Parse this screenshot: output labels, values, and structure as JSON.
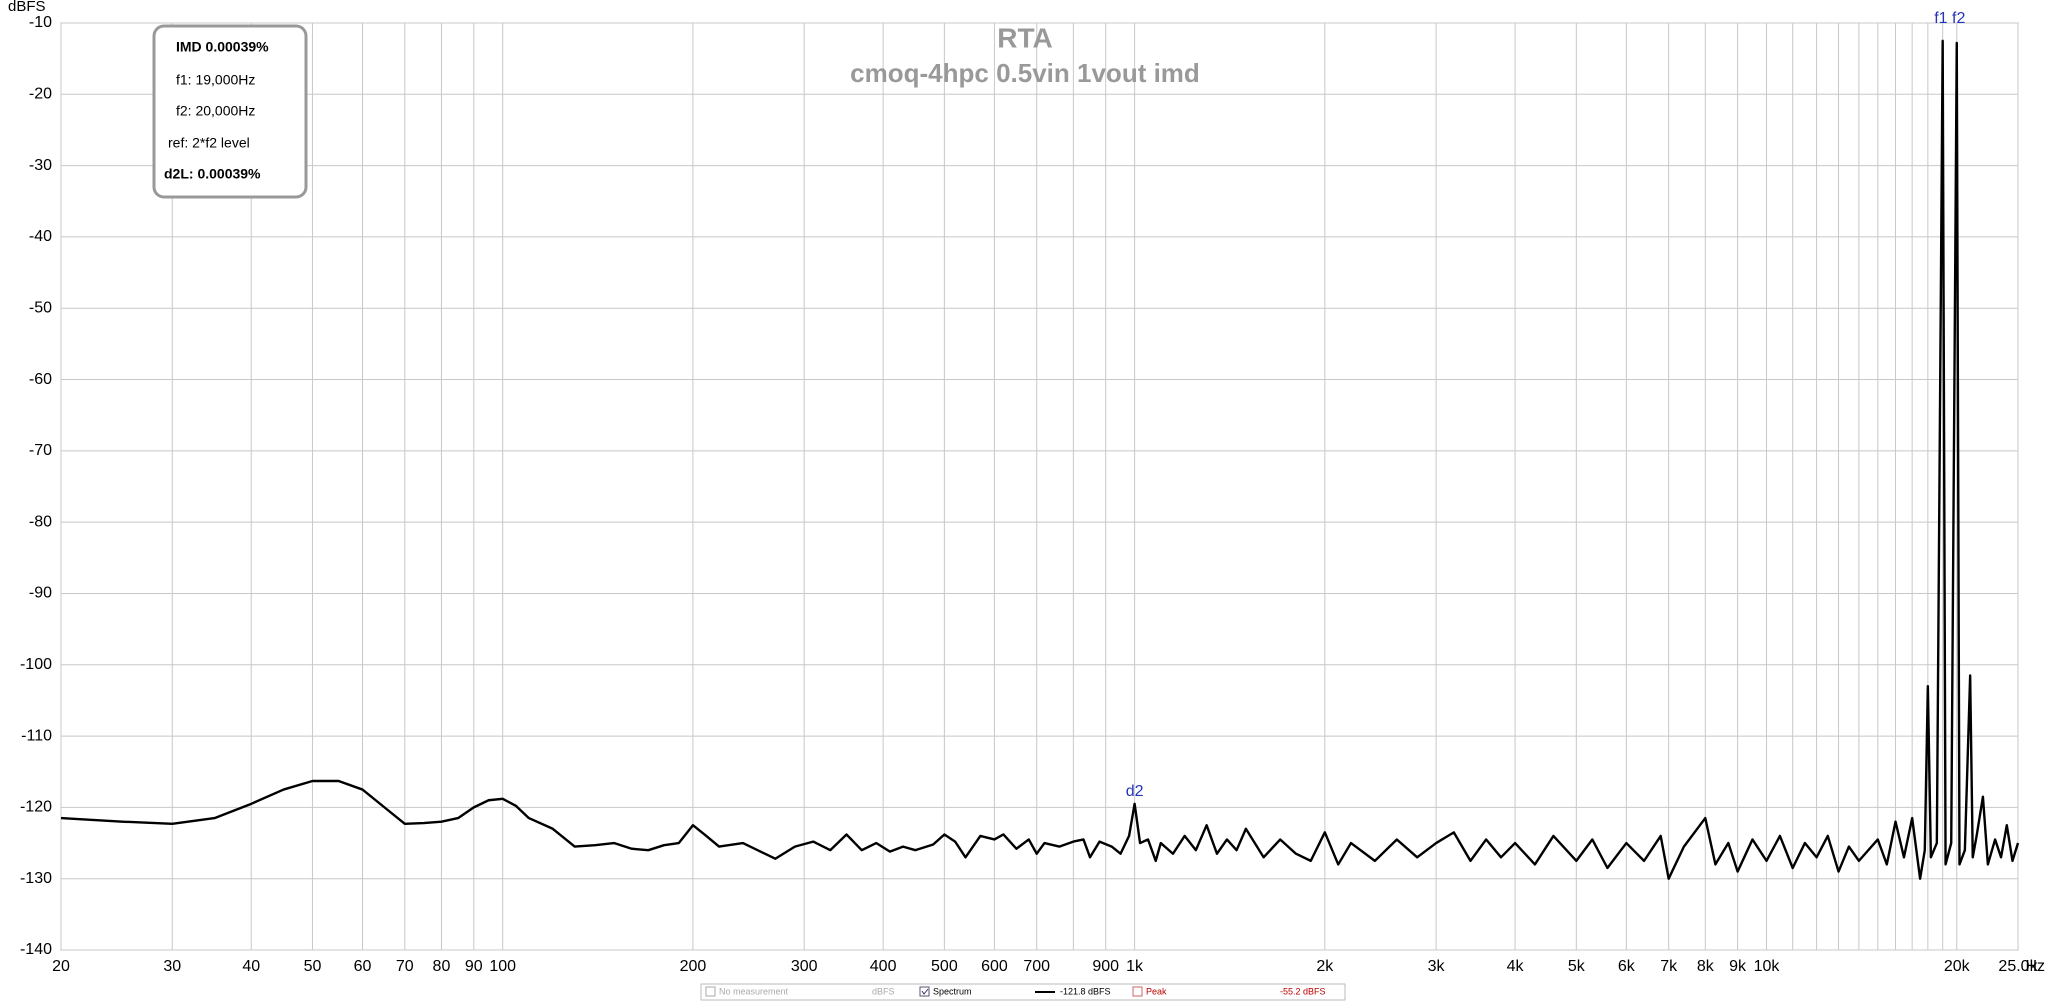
{
  "chart_data": {
    "type": "line",
    "title": "RTA",
    "subtitle": "cmoq-4hpc 0.5vin 1vout imd",
    "y_label": "dBFS",
    "x_label": "Hz",
    "x_scale": "log",
    "grid": true,
    "xlim": [
      20,
      25000
    ],
    "ylim": [
      -140,
      -10
    ],
    "yticks": [
      -10,
      -20,
      -30,
      -40,
      -50,
      -60,
      -70,
      -80,
      -90,
      -100,
      -110,
      -120,
      -130,
      -140
    ],
    "xticks": [
      20,
      30,
      40,
      50,
      60,
      70,
      80,
      90,
      100,
      200,
      300,
      400,
      500,
      600,
      700,
      900,
      {
        "value": 1000,
        "label": "1k"
      },
      {
        "value": 2000,
        "label": "2k"
      },
      {
        "value": 3000,
        "label": "3k"
      },
      {
        "value": 4000,
        "label": "4k"
      },
      {
        "value": 5000,
        "label": "5k"
      },
      {
        "value": 6000,
        "label": "6k"
      },
      {
        "value": 7000,
        "label": "7k"
      },
      {
        "value": 8000,
        "label": "8k"
      },
      {
        "value": 9000,
        "label": "9k"
      },
      {
        "value": 10000,
        "label": "10k"
      },
      {
        "value": 20000,
        "label": "20k"
      },
      {
        "value": 25000,
        "label": "25.0k"
      }
    ],
    "x_minor_grid": [
      800,
      11000,
      12000,
      13000,
      14000,
      15000,
      16000,
      17000,
      18000,
      19000
    ],
    "x": [
      20,
      25,
      30,
      35,
      40,
      45,
      50,
      55,
      60,
      65,
      70,
      75,
      80,
      85,
      90,
      95,
      100,
      105,
      110,
      120,
      130,
      140,
      150,
      160,
      170,
      180,
      190,
      200,
      210,
      220,
      240,
      260,
      270,
      290,
      310,
      330,
      350,
      370,
      390,
      410,
      430,
      450,
      480,
      500,
      520,
      540,
      570,
      600,
      620,
      650,
      680,
      700,
      720,
      760,
      800,
      830,
      850,
      880,
      920,
      950,
      980,
      1000,
      1020,
      1050,
      1080,
      1100,
      1150,
      1200,
      1250,
      1300,
      1350,
      1400,
      1450,
      1500,
      1600,
      1700,
      1800,
      1900,
      2000,
      2100,
      2200,
      2400,
      2600,
      2800,
      3000,
      3200,
      3400,
      3600,
      3800,
      4000,
      4300,
      4600,
      5000,
      5300,
      5600,
      6000,
      6400,
      6800,
      7000,
      7400,
      8000,
      8300,
      8700,
      9000,
      9500,
      10000,
      10500,
      11000,
      11500,
      12000,
      12500,
      13000,
      13500,
      14000,
      15000,
      15500,
      16000,
      16500,
      17000,
      17500,
      17800,
      18000,
      18200,
      18600,
      19000,
      19200,
      19600,
      20000,
      20200,
      20600,
      21000,
      21200,
      21500,
      22000,
      22400,
      23000,
      23500,
      24000,
      24500,
      25000
    ],
    "series": [
      {
        "name": "Spectrum",
        "color": "#000000",
        "values": [
          -121.5,
          -122,
          -122.3,
          -121.5,
          -119.5,
          -117.5,
          -116.3,
          -116.3,
          -117.5,
          -120,
          -122.3,
          -122.2,
          -122,
          -121.5,
          -120,
          -119,
          -118.8,
          -119.8,
          -121.5,
          -123,
          -125.5,
          -125.3,
          -125,
          -125.8,
          -126,
          -125.3,
          -125,
          -122.5,
          -124,
          -125.5,
          -125,
          -126.5,
          -127.2,
          -125.5,
          -124.8,
          -126,
          -123.8,
          -126,
          -125,
          -126.2,
          -125.5,
          -126,
          -125.2,
          -123.8,
          -124.8,
          -127,
          -124,
          -124.5,
          -123.8,
          -125.8,
          -124.5,
          -126.5,
          -125,
          -125.5,
          -124.8,
          -124.5,
          -127,
          -124.8,
          -125.5,
          -126.5,
          -124,
          -119.5,
          -125,
          -124.5,
          -127.5,
          -125,
          -126.5,
          -124,
          -126,
          -122.5,
          -126.5,
          -124.5,
          -126,
          -123,
          -127,
          -124.5,
          -126.5,
          -127.5,
          -123.5,
          -128,
          -125,
          -127.5,
          -124.5,
          -127,
          -125,
          -123.5,
          -127.5,
          -124.5,
          -127,
          -125,
          -128,
          -124,
          -127.5,
          -124.5,
          -128.5,
          -125,
          -127.5,
          -124,
          -130,
          -125.5,
          -121.5,
          -128,
          -125,
          -129,
          -124.5,
          -127.5,
          -124,
          -128.5,
          -125,
          -127,
          -124,
          -129,
          -125.5,
          -127.5,
          -124.5,
          -128,
          -122,
          -127,
          -121.5,
          -130,
          -126,
          -103,
          -127,
          -125,
          -12.5,
          -128,
          -125,
          -12.8,
          -128,
          -126,
          -101.5,
          -127,
          -124,
          -118.5,
          -128,
          -124.5,
          -127,
          -122.5,
          -127.5,
          -125
        ]
      }
    ],
    "annotations": [
      {
        "text": "d2",
        "x": 1000,
        "y": -117.8
      },
      {
        "text": "f1 f2",
        "x": 19500,
        "y": -9.4
      }
    ],
    "info_box": [
      "IMD 0.00039%",
      "f1:  19,000Hz",
      "f2:  20,000Hz",
      "ref:  2*f2 level",
      "d2L:  0.00039%"
    ],
    "legend_bar": {
      "empty": "No measurement",
      "unit": "dBFS",
      "spectrum_level": "-121.8 dBFS",
      "peak": "Peak",
      "peak_level": "-55.2 dBFS"
    }
  }
}
